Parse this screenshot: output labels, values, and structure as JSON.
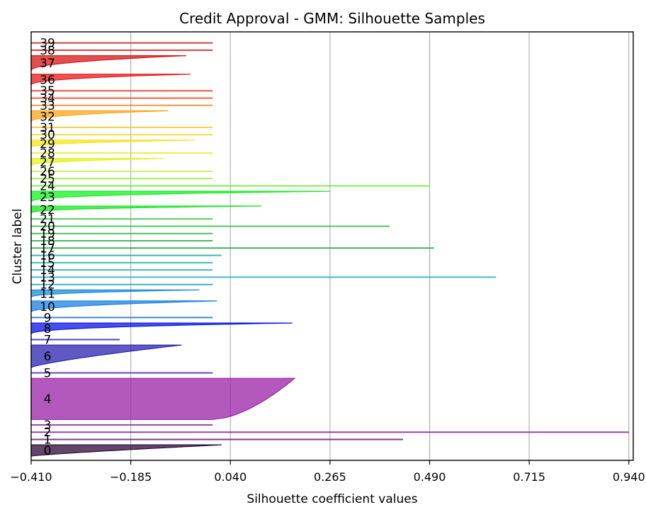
{
  "chart_data": {
    "type": "area",
    "title": "Credit Approval - GMM: Silhouette Samples",
    "xlabel": "Silhouette coefficient values",
    "ylabel": "Cluster label",
    "xlim": [
      -0.41,
      0.95
    ],
    "x_ticks": [
      -0.41,
      -0.185,
      0.04,
      0.265,
      0.49,
      0.715,
      0.94
    ],
    "x_tick_labels": [
      "−0.410",
      "−0.185",
      "0.040",
      "0.265",
      "0.490",
      "0.715",
      "0.940"
    ],
    "grid": "x",
    "clusters": [
      {
        "label": "0",
        "color": "#2e0a3a",
        "size": 3,
        "max": 0.02,
        "min": -0.41,
        "shape": 1.2
      },
      {
        "label": "1",
        "color": "#5a0a7a",
        "size": 1,
        "max": 0.43,
        "min": 0.43,
        "shape": 1
      },
      {
        "label": "2",
        "color": "#7a13a0",
        "size": 1,
        "max": 0.94,
        "min": 0.94,
        "shape": 1
      },
      {
        "label": "3",
        "color": "#8a1aa6",
        "size": 1,
        "max": 0.0,
        "min": 0.0,
        "shape": 1
      },
      {
        "label": "4",
        "color": "#9a22a8",
        "size": 11,
        "max": 0.185,
        "min": 0.0,
        "shape": 0.6
      },
      {
        "label": "5",
        "color": "#3f1fa8",
        "size": 1,
        "max": 0.0,
        "min": 0.0,
        "shape": 1
      },
      {
        "label": "6",
        "color": "#2a22b0",
        "size": 6,
        "max": -0.07,
        "min": -0.41,
        "shape": 1.3
      },
      {
        "label": "7",
        "color": "#1a1ab0",
        "size": 1,
        "max": -0.21,
        "min": -0.41,
        "shape": 1
      },
      {
        "label": "8",
        "color": "#0a14e0",
        "size": 3,
        "max": 0.18,
        "min": -0.41,
        "shape": 2.5
      },
      {
        "label": "9",
        "color": "#1468d8",
        "size": 1,
        "max": 0.0,
        "min": 0.0,
        "shape": 1
      },
      {
        "label": "10",
        "color": "#1a80e0",
        "size": 3,
        "max": 0.01,
        "min": -0.41,
        "shape": 2.2
      },
      {
        "label": "11",
        "color": "#1b8ad8",
        "size": 2,
        "max": -0.03,
        "min": -0.41,
        "shape": 2.5
      },
      {
        "label": "12",
        "color": "#1a9ac6",
        "size": 1,
        "max": 0.0,
        "min": 0.0,
        "shape": 1
      },
      {
        "label": "13",
        "color": "#16a8c4",
        "size": 1,
        "max": 0.64,
        "min": 0.64,
        "shape": 1
      },
      {
        "label": "14",
        "color": "#18a6b0",
        "size": 1,
        "max": 0.0,
        "min": 0.0,
        "shape": 1
      },
      {
        "label": "15",
        "color": "#1aa89e",
        "size": 1,
        "max": 0.0,
        "min": 0.0,
        "shape": 1
      },
      {
        "label": "16",
        "color": "#14a890",
        "size": 1,
        "max": 0.02,
        "min": 0.0,
        "shape": 1
      },
      {
        "label": "17",
        "color": "#14a038",
        "size": 1,
        "max": 0.5,
        "min": 0.5,
        "shape": 1
      },
      {
        "label": "18",
        "color": "#18a83a",
        "size": 1,
        "max": 0.0,
        "min": 0.0,
        "shape": 1
      },
      {
        "label": "19",
        "color": "#20b03a",
        "size": 1,
        "max": 0.0,
        "min": 0.0,
        "shape": 1
      },
      {
        "label": "20",
        "color": "#24b83a",
        "size": 1,
        "max": 0.4,
        "min": 0.4,
        "shape": 1
      },
      {
        "label": "21",
        "color": "#28c43a",
        "size": 1,
        "max": 0.0,
        "min": 0.0,
        "shape": 1
      },
      {
        "label": "22",
        "color": "#12e81e",
        "size": 2,
        "max": 0.11,
        "min": -0.41,
        "shape": 3
      },
      {
        "label": "23",
        "color": "#14f020",
        "size": 3,
        "max": 0.265,
        "min": -0.41,
        "shape": 3
      },
      {
        "label": "24",
        "color": "#60f01e",
        "size": 1,
        "max": 0.49,
        "min": 0.49,
        "shape": 1
      },
      {
        "label": "25",
        "color": "#8cf02a",
        "size": 1,
        "max": 0.0,
        "min": 0.0,
        "shape": 1
      },
      {
        "label": "26",
        "color": "#bcf03a",
        "size": 1,
        "max": 0.0,
        "min": 0.0,
        "shape": 1
      },
      {
        "label": "27",
        "color": "#e8f01a",
        "size": 2,
        "max": -0.11,
        "min": -0.41,
        "shape": 2.5
      },
      {
        "label": "28",
        "color": "#e8ea1a",
        "size": 1,
        "max": 0.0,
        "min": 0.0,
        "shape": 1
      },
      {
        "label": "29",
        "color": "#f2e41a",
        "size": 2,
        "max": -0.04,
        "min": -0.41,
        "shape": 2.5
      },
      {
        "label": "30",
        "color": "#fcd21a",
        "size": 1,
        "max": 0.0,
        "min": 0.0,
        "shape": 1
      },
      {
        "label": "31",
        "color": "#fcc01a",
        "size": 1,
        "max": 0.0,
        "min": 0.0,
        "shape": 1
      },
      {
        "label": "32",
        "color": "#fca61a",
        "size": 3,
        "max": -0.1,
        "min": -0.41,
        "shape": 2.5
      },
      {
        "label": "33",
        "color": "#f07a1a",
        "size": 1,
        "max": 0.0,
        "min": 0.0,
        "shape": 1
      },
      {
        "label": "34",
        "color": "#ea3a1a",
        "size": 1,
        "max": 0.0,
        "min": 0.0,
        "shape": 1
      },
      {
        "label": "35",
        "color": "#e8281a",
        "size": 1,
        "max": 0.0,
        "min": 0.0,
        "shape": 1
      },
      {
        "label": "36",
        "color": "#e41a1a",
        "size": 3,
        "max": -0.05,
        "min": -0.41,
        "shape": 2.5
      },
      {
        "label": "37",
        "color": "#d81414",
        "size": 4,
        "max": -0.06,
        "min": -0.41,
        "shape": 2.2
      },
      {
        "label": "38",
        "color": "#cc1010",
        "size": 1,
        "max": 0.0,
        "min": 0.0,
        "shape": 1
      },
      {
        "label": "39",
        "color": "#c41414",
        "size": 1,
        "max": 0.0,
        "min": 0.0,
        "shape": 1
      }
    ]
  }
}
